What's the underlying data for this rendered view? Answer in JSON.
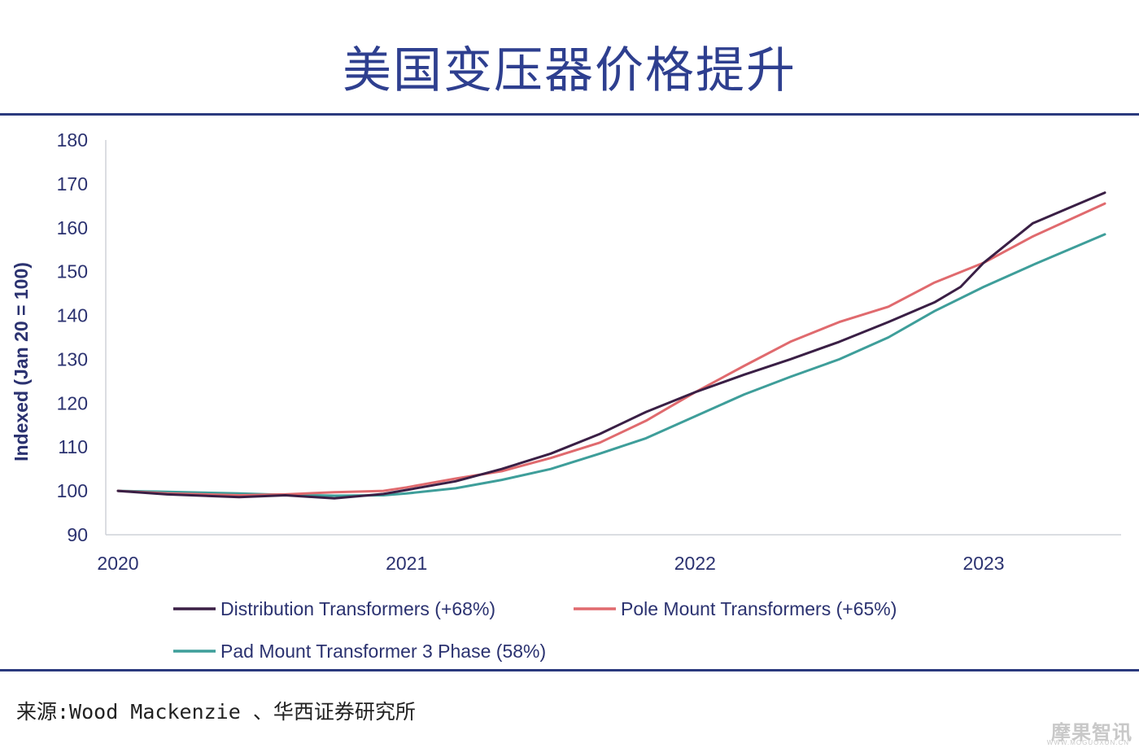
{
  "header": {
    "title": "美国变压器价格提升"
  },
  "footer": {
    "source": "来源:Wood Mackenzie 、华西证券研究所",
    "watermark": "摩果智讯",
    "watermark_sub": "WWW.MOGUOXUN.CN"
  },
  "colors": {
    "title": "#2e3f8f",
    "rule": "#2b3a7e",
    "axis_text": "#2b3270",
    "distribution": "#3a1f45",
    "pole": "#e06a6e",
    "pad": "#3e9e9a"
  },
  "chart_data": {
    "type": "line",
    "title": "美国变压器价格提升",
    "xlabel": "",
    "ylabel": "Indexed (Jan 20 = 100)",
    "ylim": [
      90,
      180
    ],
    "yticks": [
      90,
      100,
      110,
      120,
      130,
      140,
      150,
      160,
      170,
      180
    ],
    "xlim": [
      2020,
      2023.42
    ],
    "xticks": [
      2020,
      2021,
      2022,
      2023
    ],
    "grid": false,
    "legend_position": "bottom",
    "series": [
      {
        "name": "Distribution Transformers (+68%)",
        "color": "#3a1f45",
        "points": [
          [
            2020,
            100
          ],
          [
            2020.17,
            99.2
          ],
          [
            2020.42,
            98.6
          ],
          [
            2020.58,
            99
          ],
          [
            2020.75,
            98.3
          ],
          [
            2020.92,
            99.3
          ],
          [
            2021,
            100.2
          ],
          [
            2021.17,
            102.2
          ],
          [
            2021.33,
            105
          ],
          [
            2021.5,
            108.5
          ],
          [
            2021.67,
            113
          ],
          [
            2021.83,
            118
          ],
          [
            2022,
            122.5
          ],
          [
            2022.17,
            126.5
          ],
          [
            2022.33,
            130
          ],
          [
            2022.5,
            134
          ],
          [
            2022.67,
            138.5
          ],
          [
            2022.83,
            143
          ],
          [
            2022.92,
            146.5
          ],
          [
            2023,
            152
          ],
          [
            2023.17,
            161
          ],
          [
            2023.42,
            168
          ]
        ]
      },
      {
        "name": "Pole Mount Transformers (+65%)",
        "color": "#e06a6e",
        "points": [
          [
            2020,
            100
          ],
          [
            2020.17,
            99.4
          ],
          [
            2020.42,
            99
          ],
          [
            2020.58,
            99.2
          ],
          [
            2020.75,
            99.7
          ],
          [
            2020.92,
            100
          ],
          [
            2021,
            100.8
          ],
          [
            2021.17,
            102.8
          ],
          [
            2021.33,
            104.5
          ],
          [
            2021.5,
            107.5
          ],
          [
            2021.67,
            111
          ],
          [
            2021.83,
            116
          ],
          [
            2022,
            122.5
          ],
          [
            2022.17,
            128.5
          ],
          [
            2022.33,
            134
          ],
          [
            2022.5,
            138.5
          ],
          [
            2022.67,
            142
          ],
          [
            2022.83,
            147.5
          ],
          [
            2023,
            152
          ],
          [
            2023.17,
            158
          ],
          [
            2023.42,
            165.5
          ]
        ]
      },
      {
        "name": "Pad Mount Transformer 3 Phase (58%)",
        "color": "#3e9e9a",
        "points": [
          [
            2020,
            100
          ],
          [
            2020.17,
            99.8
          ],
          [
            2020.42,
            99.4
          ],
          [
            2020.58,
            99.1
          ],
          [
            2020.75,
            98.9
          ],
          [
            2020.92,
            99
          ],
          [
            2021,
            99.4
          ],
          [
            2021.17,
            100.6
          ],
          [
            2021.33,
            102.5
          ],
          [
            2021.5,
            105
          ],
          [
            2021.67,
            108.5
          ],
          [
            2021.83,
            112
          ],
          [
            2022,
            117
          ],
          [
            2022.17,
            122
          ],
          [
            2022.33,
            126
          ],
          [
            2022.5,
            130
          ],
          [
            2022.67,
            135
          ],
          [
            2022.83,
            141
          ],
          [
            2023,
            146.5
          ],
          [
            2023.17,
            151.5
          ],
          [
            2023.42,
            158.5
          ]
        ]
      }
    ]
  }
}
